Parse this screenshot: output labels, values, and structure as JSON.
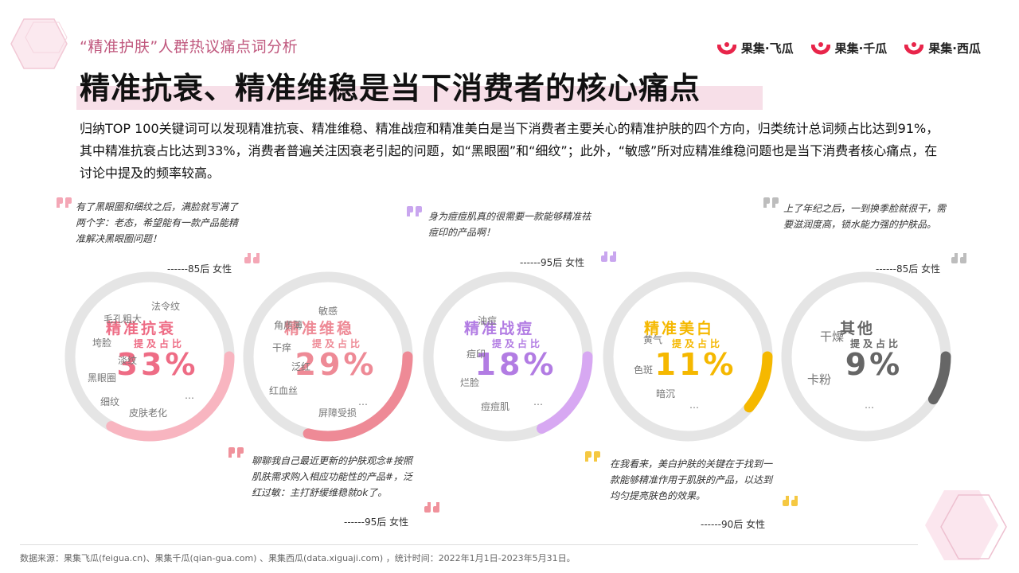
{
  "header": {
    "section_label": "“精准护肤”人群热议痛点词分析",
    "title": "精准抗衰、精准维稳是当下消费者的核心痛点",
    "description": "归纳TOP 100关键词可以发现精准抗衰、精准维稳、精准战痘和精准美白是当下消费者主要关心的精准护肤的四个方向，归类统计总词频占比达到91%，其中精准抗衰占比达到33%，消费者普遍关注因衰老引起的问题，如“黑眼圈”和“细纹”；此外，“敏感”所对应精准维稳问题也是当下消费者核心痛点，在讨论中提及的频率较高。"
  },
  "logos": [
    {
      "name": "果集·飞瓜"
    },
    {
      "name": "果集·千瓜"
    },
    {
      "name": "果集·西瓜"
    }
  ],
  "quotes": [
    {
      "text": "有了黑眼圈和细纹之后，满脸就写满了两个字：老态，希望能有一款产品能精准解决黑眼圈问题！",
      "author": "------85后 女性",
      "color": "#f4a7b6"
    },
    {
      "text": "身为痘痘肌真的很需要一款能够精准祛痘印的产品啊！",
      "author": "------95后 女性",
      "color": "#c9a6ef"
    },
    {
      "text": "上了年纪之后，一到换季脸就很干，需要滋润度高，锁水能力强的护肤品。",
      "author": "------85后 女性",
      "color": "#bdbdbd"
    },
    {
      "text": "聊聊我自己最近更新的护肤观念#按照肌肤需求购入相应功能性的产品#，泛红过敏：主打舒缓维稳就ok了。",
      "author": "------95后 女性",
      "color": "#f0929c"
    },
    {
      "text": "在我看来，美白护肤的关键在于找到一款能够精准作用于肌肤的产品，以达到均匀提亮肤色的效果。",
      "author": "------90后 女性",
      "color": "#f5c842"
    }
  ],
  "chart_data": {
    "type": "donut",
    "title": "",
    "series": [
      {
        "name": "精准抗衰",
        "sub": "提及占比",
        "value": 33,
        "label": "33%",
        "color": "#ee6c85",
        "arc_color": "#f8b5c0",
        "keywords": [
          "法令纹",
          "毛孔粗大",
          "垮脸",
          "淡纹",
          "黑眼圈",
          "细纹",
          "皮肤老化",
          "…"
        ]
      },
      {
        "name": "精准维稳",
        "sub": "提及占比",
        "value": 29,
        "label": "29%",
        "color": "#ee8a96",
        "arc_color": "#ee8a96",
        "keywords": [
          "敏感",
          "角质薄",
          "干痒",
          "泛红",
          "红血丝",
          "屏障受损",
          "…"
        ]
      },
      {
        "name": "精准战痘",
        "sub": "提及占比",
        "value": 18,
        "label": "18%",
        "color": "#b27ce3",
        "arc_color": "#d7a8f2",
        "keywords": [
          "油痘",
          "痘印",
          "烂脸",
          "痘痘肌",
          "…"
        ]
      },
      {
        "name": "精准美白",
        "sub": "提及占比",
        "value": 11,
        "label": "11%",
        "color": "#f5b800",
        "arc_color": "#f5b800",
        "keywords": [
          "黄气",
          "色斑",
          "暗沉",
          "…"
        ]
      },
      {
        "name": "其他",
        "sub": "提及占比",
        "value": 9,
        "label": "9%",
        "color": "#666666",
        "arc_color": "#666666",
        "keywords": [
          "干燥",
          "卡粉",
          "…"
        ]
      }
    ]
  },
  "footer": {
    "source": "数据来源：果集飞瓜(feigua.cn)、果集千瓜(qian-gua.com) 、果集西瓜(data.xiguaji.com) ，统计时间：2022年1月1日-2023年5月31日。"
  }
}
